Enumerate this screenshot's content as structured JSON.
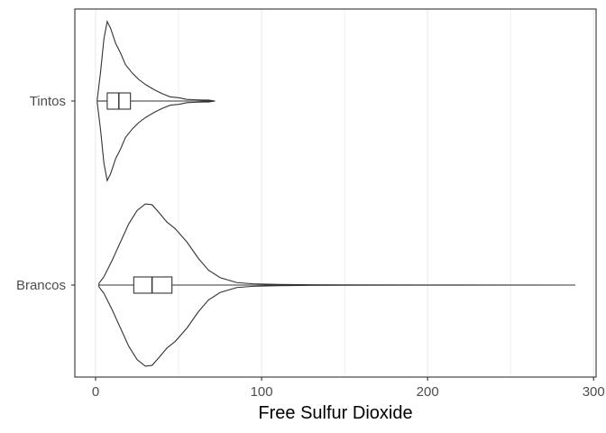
{
  "chart_data": {
    "type": "violin",
    "orientation": "horizontal",
    "xlabel": "Free Sulfur Dioxide",
    "ylabel": "",
    "xlim": [
      -12.5,
      301.5
    ],
    "x_ticks": [
      0,
      100,
      200,
      300
    ],
    "x_minor_gridlines": [
      50,
      150,
      250
    ],
    "grid": true,
    "categories": [
      "Tintos",
      "Brancos"
    ],
    "groups": [
      {
        "name": "Tintos",
        "box": {
          "min": 1,
          "q1": 7,
          "median": 14,
          "q3": 21,
          "max": 72
        },
        "density": [
          [
            1,
            0.02
          ],
          [
            3,
            0.35
          ],
          [
            5,
            0.75
          ],
          [
            7,
            0.96
          ],
          [
            9,
            0.88
          ],
          [
            12,
            0.7
          ],
          [
            15,
            0.58
          ],
          [
            18,
            0.44
          ],
          [
            22,
            0.34
          ],
          [
            26,
            0.26
          ],
          [
            30,
            0.2
          ],
          [
            35,
            0.14
          ],
          [
            40,
            0.09
          ],
          [
            45,
            0.05
          ],
          [
            50,
            0.04
          ],
          [
            55,
            0.02
          ],
          [
            60,
            0.015
          ],
          [
            65,
            0.012
          ],
          [
            68,
            0.012
          ],
          [
            72,
            0.0
          ]
        ]
      },
      {
        "name": "Brancos",
        "box": {
          "min": 2,
          "q1": 23,
          "median": 34,
          "q3": 46,
          "max": 289
        },
        "density": [
          [
            2,
            0.02
          ],
          [
            5,
            0.1
          ],
          [
            10,
            0.3
          ],
          [
            15,
            0.52
          ],
          [
            20,
            0.74
          ],
          [
            25,
            0.9
          ],
          [
            30,
            0.98
          ],
          [
            34,
            0.97
          ],
          [
            38,
            0.88
          ],
          [
            43,
            0.76
          ],
          [
            48,
            0.68
          ],
          [
            55,
            0.52
          ],
          [
            62,
            0.32
          ],
          [
            68,
            0.18
          ],
          [
            75,
            0.09
          ],
          [
            85,
            0.03
          ],
          [
            95,
            0.015
          ],
          [
            110,
            0.008
          ],
          [
            130,
            0.004
          ],
          [
            150,
            0.002
          ],
          [
            200,
            0.001
          ],
          [
            289,
            0.0
          ]
        ]
      }
    ],
    "colors": {
      "outline": "#333333",
      "panel_border": "#333333",
      "gridline": "#ebebeb",
      "tick_text": "#4d4d4d",
      "background": "#ffffff"
    }
  }
}
